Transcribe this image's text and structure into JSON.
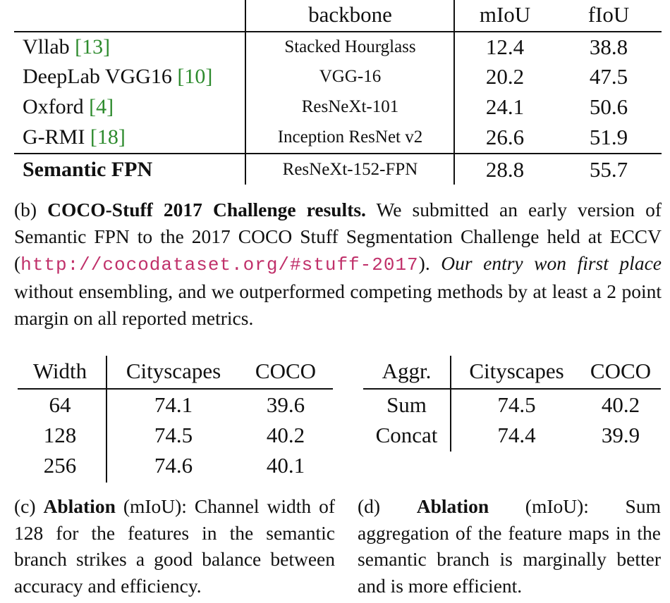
{
  "table_b": {
    "headers": {
      "method": "",
      "backbone": "backbone",
      "miou": "mIoU",
      "fiou": "fIoU"
    },
    "rows": [
      {
        "method": "Vllab ",
        "cite": "[13]",
        "backbone": "Stacked Hourglass",
        "miou": "12.4",
        "fiou": "38.8"
      },
      {
        "method": "DeepLab VGG16 ",
        "cite": "[10]",
        "backbone": "VGG-16",
        "miou": "20.2",
        "fiou": "47.5"
      },
      {
        "method": "Oxford ",
        "cite": "[4]",
        "backbone": "ResNeXt-101",
        "miou": "24.1",
        "fiou": "50.6"
      },
      {
        "method": "G-RMI ",
        "cite": "[18]",
        "backbone": "Inception ResNet v2",
        "miou": "26.6",
        "fiou": "51.9"
      }
    ],
    "final_row": {
      "method": "Semantic FPN",
      "backbone": "ResNeXt-152-FPN",
      "miou": "28.8",
      "fiou": "55.7"
    }
  },
  "caption_b": {
    "label": "(b) ",
    "bold": "COCO-Stuff 2017 Challenge results.",
    "text1": " We submitted an early version of Semantic FPN to the 2017 COCO Stuff Segmentation Challenge held at ECCV (",
    "url": "http://cocodataset.org/#stuff-2017",
    "text2": "). ",
    "italic": "Our entry won first place",
    "text3": " without ensembling, and we outperformed competing methods by at least a 2 point margin on all reported metrics."
  },
  "table_c": {
    "headers": [
      "Width",
      "Cityscapes",
      "COCO"
    ],
    "rows": [
      [
        "64",
        "74.1",
        "39.6"
      ],
      [
        "128",
        "74.5",
        "40.2"
      ],
      [
        "256",
        "74.6",
        "40.1"
      ]
    ]
  },
  "caption_c": {
    "label": "(c) ",
    "bold": "Ablation",
    "text": " (mIoU): Channel width of 128 for the features in the semantic branch strikes a good balance between accuracy and efficiency."
  },
  "table_d": {
    "headers": [
      "Aggr.",
      "Cityscapes",
      "COCO"
    ],
    "rows": [
      [
        "Sum",
        "74.5",
        "40.2"
      ],
      [
        "Concat",
        "74.4",
        "39.9"
      ]
    ]
  },
  "caption_d": {
    "label": "(d) ",
    "bold": "Ablation",
    "text": " (mIoU): Sum aggregation of the feature maps in the semantic branch is marginally better and is more efficient."
  }
}
